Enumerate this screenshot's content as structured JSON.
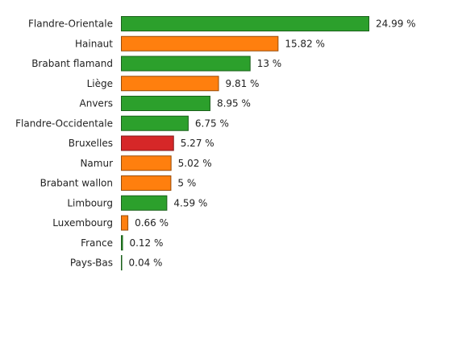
{
  "chart_data": {
    "type": "bar",
    "orientation": "horizontal",
    "categories": [
      "Flandre-Orientale",
      "Hainaut",
      "Brabant flamand",
      "Liège",
      "Anvers",
      "Flandre-Occidentale",
      "Bruxelles",
      "Namur",
      "Brabant wallon",
      "Limbourg",
      "Luxembourg",
      "France",
      "Pays-Bas"
    ],
    "values": [
      24.99,
      15.82,
      13,
      9.81,
      8.95,
      6.75,
      5.27,
      5.02,
      5,
      4.59,
      0.66,
      0.12,
      0.04
    ],
    "value_labels": [
      "24.99 %",
      "15.82 %",
      "13 %",
      "9.81 %",
      "8.95 %",
      "6.75 %",
      "5.27 %",
      "5.02 %",
      "5 %",
      "4.59 %",
      "0.66 %",
      "0.12 %",
      "0.04 %"
    ],
    "colors": [
      "#2ca02c",
      "#ff7f0e",
      "#2ca02c",
      "#ff7f0e",
      "#2ca02c",
      "#2ca02c",
      "#d62728",
      "#ff7f0e",
      "#ff7f0e",
      "#2ca02c",
      "#ff7f0e",
      "#2ca02c",
      "#2ca02c"
    ]
  }
}
